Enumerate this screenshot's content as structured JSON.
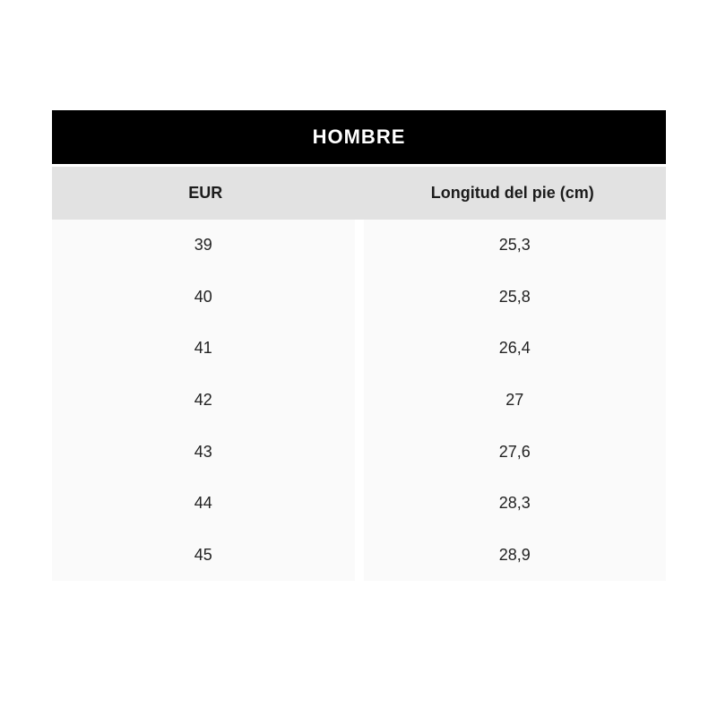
{
  "chart_data": {
    "type": "table",
    "title": "HOMBRE",
    "columns": [
      "EUR",
      "Longitud del pie (cm)"
    ],
    "rows": [
      [
        "39",
        "25,3"
      ],
      [
        "40",
        "25,8"
      ],
      [
        "41",
        "26,4"
      ],
      [
        "42",
        "27"
      ],
      [
        "43",
        "27,6"
      ],
      [
        "44",
        "28,3"
      ],
      [
        "45",
        "28,9"
      ]
    ]
  },
  "colors": {
    "title_bar_bg": "#000000",
    "title_bar_text": "#ffffff",
    "header_row_bg": "#e2e2e2",
    "body_cell_bg": "#fafafa",
    "body_text": "#222222",
    "page_bg": "#ffffff"
  }
}
